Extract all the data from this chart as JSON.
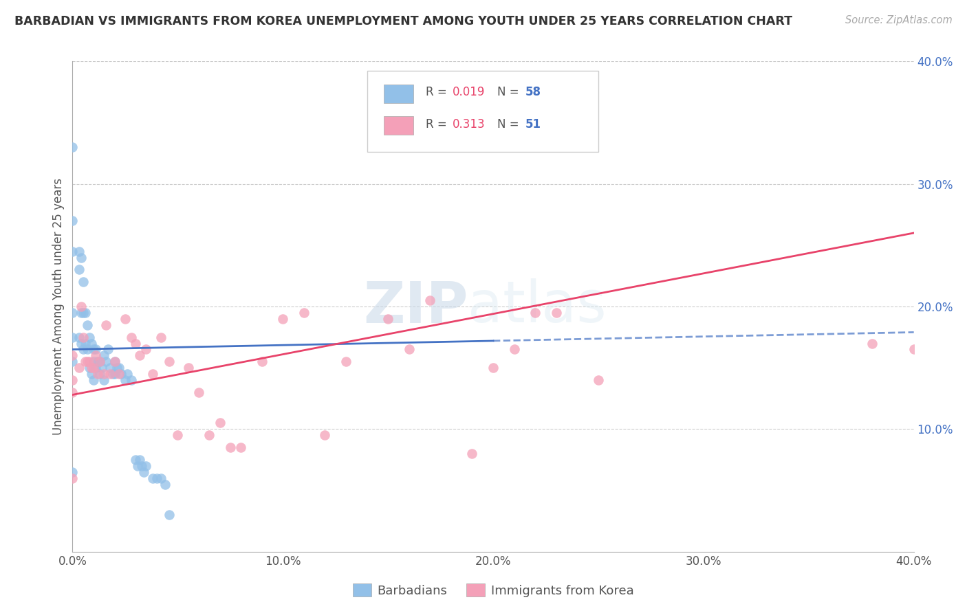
{
  "title": "BARBADIAN VS IMMIGRANTS FROM KOREA UNEMPLOYMENT AMONG YOUTH UNDER 25 YEARS CORRELATION CHART",
  "source_text": "Source: ZipAtlas.com",
  "ylabel": "Unemployment Among Youth under 25 years",
  "xlim": [
    0.0,
    0.4
  ],
  "ylim": [
    0.0,
    0.4
  ],
  "x_ticks": [
    0.0,
    0.1,
    0.2,
    0.3,
    0.4
  ],
  "y_ticks_right": [
    0.1,
    0.2,
    0.3,
    0.4
  ],
  "x_tick_labels": [
    "0.0%",
    "10.0%",
    "20.0%",
    "30.0%",
    "40.0%"
  ],
  "y_tick_labels_right": [
    "10.0%",
    "20.0%",
    "30.0%",
    "40.0%"
  ],
  "barbadian_color": "#92C0E8",
  "korea_color": "#F4A0B8",
  "barbadian_line_color": "#4472C4",
  "korea_line_color": "#E8436A",
  "R_color": "#E8436A",
  "N_color": "#4472C4",
  "legend_R1": "0.019",
  "legend_N1": "58",
  "legend_R2": "0.313",
  "legend_N2": "51",
  "legend_label1": "Barbadians",
  "legend_label2": "Immigrants from Korea",
  "watermark": "ZIPAtlas",
  "barbadian_x": [
    0.0,
    0.0,
    0.0,
    0.0,
    0.0,
    0.0,
    0.0,
    0.003,
    0.003,
    0.003,
    0.004,
    0.004,
    0.004,
    0.005,
    0.005,
    0.005,
    0.006,
    0.006,
    0.007,
    0.007,
    0.008,
    0.008,
    0.009,
    0.009,
    0.01,
    0.01,
    0.01,
    0.011,
    0.011,
    0.012,
    0.013,
    0.013,
    0.014,
    0.015,
    0.015,
    0.016,
    0.017,
    0.018,
    0.019,
    0.02,
    0.02,
    0.021,
    0.022,
    0.023,
    0.025,
    0.026,
    0.028,
    0.03,
    0.031,
    0.032,
    0.033,
    0.034,
    0.035,
    0.038,
    0.04,
    0.042,
    0.044,
    0.046
  ],
  "barbadian_y": [
    0.33,
    0.27,
    0.245,
    0.195,
    0.175,
    0.155,
    0.065,
    0.245,
    0.23,
    0.175,
    0.24,
    0.195,
    0.17,
    0.22,
    0.195,
    0.165,
    0.195,
    0.17,
    0.185,
    0.165,
    0.175,
    0.15,
    0.17,
    0.145,
    0.165,
    0.155,
    0.14,
    0.165,
    0.15,
    0.155,
    0.155,
    0.145,
    0.15,
    0.16,
    0.14,
    0.155,
    0.165,
    0.15,
    0.145,
    0.155,
    0.145,
    0.15,
    0.15,
    0.145,
    0.14,
    0.145,
    0.14,
    0.075,
    0.07,
    0.075,
    0.07,
    0.065,
    0.07,
    0.06,
    0.06,
    0.06,
    0.055,
    0.03
  ],
  "korea_x": [
    0.0,
    0.0,
    0.0,
    0.0,
    0.003,
    0.004,
    0.005,
    0.006,
    0.007,
    0.008,
    0.009,
    0.01,
    0.011,
    0.012,
    0.013,
    0.015,
    0.016,
    0.018,
    0.02,
    0.022,
    0.025,
    0.028,
    0.03,
    0.032,
    0.035,
    0.038,
    0.042,
    0.046,
    0.05,
    0.055,
    0.06,
    0.065,
    0.07,
    0.075,
    0.08,
    0.09,
    0.1,
    0.11,
    0.12,
    0.13,
    0.15,
    0.16,
    0.17,
    0.19,
    0.2,
    0.21,
    0.22,
    0.23,
    0.25,
    0.38,
    0.4
  ],
  "korea_y": [
    0.16,
    0.14,
    0.13,
    0.06,
    0.15,
    0.2,
    0.175,
    0.155,
    0.155,
    0.155,
    0.15,
    0.15,
    0.16,
    0.145,
    0.155,
    0.145,
    0.185,
    0.145,
    0.155,
    0.145,
    0.19,
    0.175,
    0.17,
    0.16,
    0.165,
    0.145,
    0.175,
    0.155,
    0.095,
    0.15,
    0.13,
    0.095,
    0.105,
    0.085,
    0.085,
    0.155,
    0.19,
    0.195,
    0.095,
    0.155,
    0.19,
    0.165,
    0.205,
    0.08,
    0.15,
    0.165,
    0.195,
    0.195,
    0.14,
    0.17,
    0.165
  ],
  "barbadian_line_x0": 0.0,
  "barbadian_line_x1": 0.2,
  "barbadian_line_y0": 0.165,
  "barbadian_line_y1": 0.172,
  "korea_line_x0": 0.0,
  "korea_line_x1": 0.4,
  "korea_line_y0": 0.128,
  "korea_line_y1": 0.26
}
